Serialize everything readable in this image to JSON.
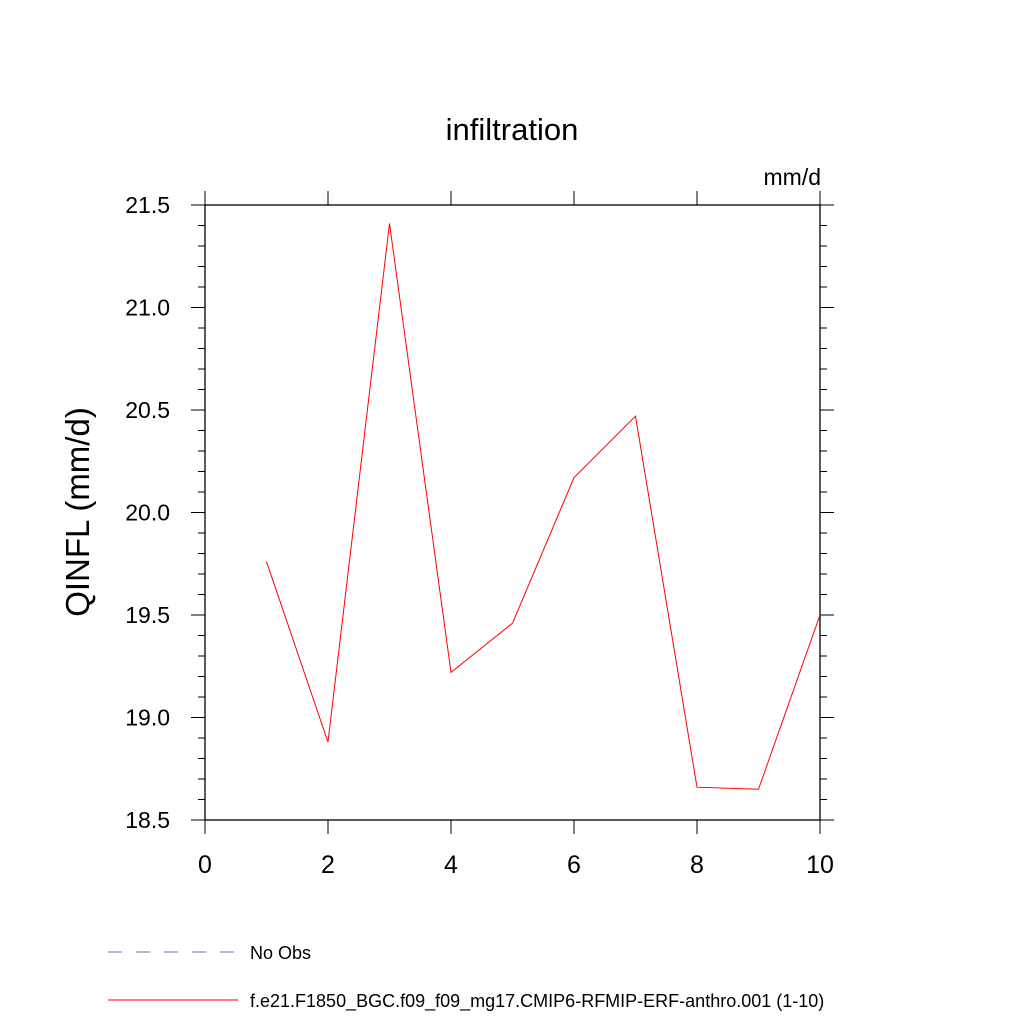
{
  "chart_data": {
    "type": "line",
    "title": "infiltration",
    "units_label": "mm/d",
    "ylabel": "QINFL  (mm/d)",
    "xlabel": "",
    "xlim": [
      0,
      10
    ],
    "ylim": [
      18.5,
      21.5
    ],
    "x_ticks": [
      0,
      2,
      4,
      6,
      8,
      10
    ],
    "x_tick_labels": [
      "0",
      "2",
      "4",
      "6",
      "8",
      "10"
    ],
    "y_ticks": [
      18.5,
      19.0,
      19.5,
      20.0,
      20.5,
      21.0,
      21.5
    ],
    "y_tick_labels": [
      "18.5",
      "19.0",
      "19.5",
      "20.0",
      "20.5",
      "21.0",
      "21.5"
    ],
    "grid": false,
    "legend_position": "bottom-left",
    "legend": [
      {
        "label": "No Obs",
        "color": "#6b6bb8",
        "style": "dashed"
      },
      {
        "label": "f.e21.F1850_BGC.f09_f09_mg17.CMIP6-RFMIP-ERF-anthro.001 (1-10)",
        "color": "#ff0000",
        "style": "solid"
      }
    ],
    "series": [
      {
        "name": "f.e21.F1850_BGC.f09_f09_mg17.CMIP6-RFMIP-ERF-anthro.001 (1-10)",
        "color": "#ff0000",
        "x": [
          1,
          2,
          3,
          4,
          5,
          6,
          7,
          8,
          9,
          10
        ],
        "values": [
          19.76,
          18.88,
          21.41,
          19.22,
          19.46,
          20.17,
          20.47,
          18.66,
          18.65,
          19.5
        ]
      }
    ]
  }
}
